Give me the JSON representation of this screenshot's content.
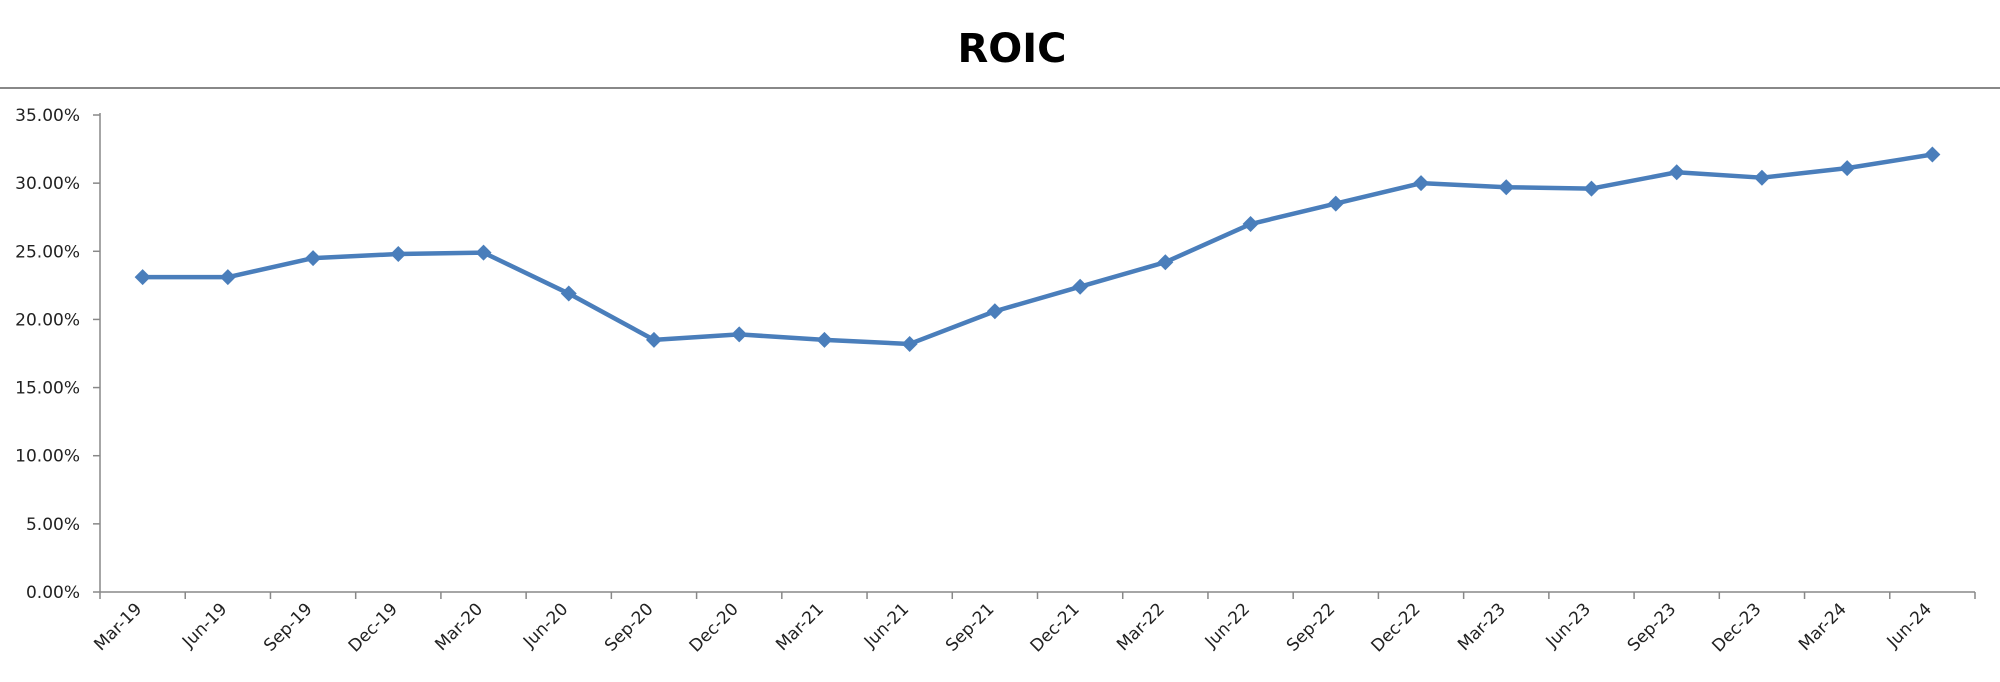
{
  "chart_data": {
    "type": "line",
    "title": "ROIC",
    "categories": [
      "Mar-19",
      "Jun-19",
      "Sep-19",
      "Dec-19",
      "Mar-20",
      "Jun-20",
      "Sep-20",
      "Dec-20",
      "Mar-21",
      "Jun-21",
      "Sep-21",
      "Dec-21",
      "Mar-22",
      "Jun-22",
      "Sep-22",
      "Dec-22",
      "Mar-23",
      "Jun-23",
      "Sep-23",
      "Dec-23",
      "Mar-24",
      "Jun-24"
    ],
    "values": [
      23.1,
      23.1,
      24.5,
      24.8,
      24.9,
      21.9,
      18.5,
      18.9,
      18.5,
      18.2,
      20.6,
      22.4,
      24.2,
      27.0,
      28.5,
      30.0,
      29.7,
      29.6,
      30.8,
      30.4,
      31.1,
      32.1
    ],
    "color": "#4a7ebb",
    "ylim": [
      0,
      35
    ],
    "yticks": [
      {
        "value": 0,
        "label": "0.00%"
      },
      {
        "value": 5,
        "label": "5.00%"
      },
      {
        "value": 10,
        "label": "10.00%"
      },
      {
        "value": 15,
        "label": "15.00%"
      },
      {
        "value": 20,
        "label": "20.00%"
      },
      {
        "value": 25,
        "label": "25.00%"
      },
      {
        "value": 30,
        "label": "30.00%"
      },
      {
        "value": 35,
        "label": "35.00%"
      }
    ],
    "grid": false
  }
}
